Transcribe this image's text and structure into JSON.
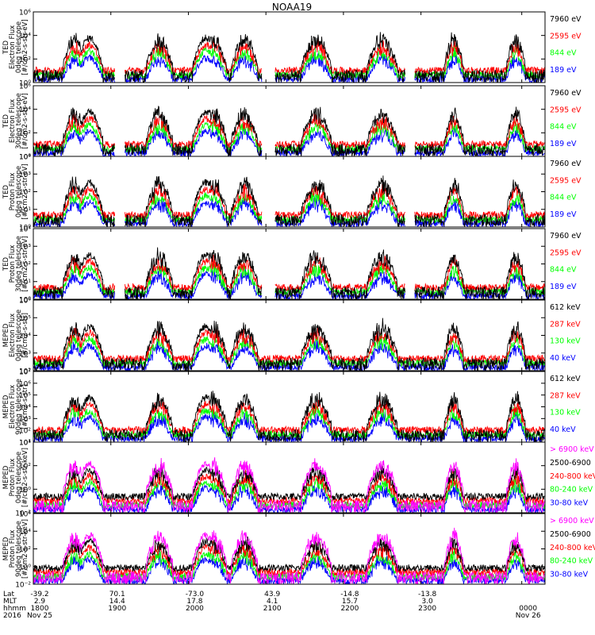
{
  "figure": {
    "title": "NOAA19",
    "colors": {
      "blue": "#0000ff",
      "red": "#ff0000",
      "green": "#00ff00",
      "black": "#000000",
      "magenta": "#ff00ff"
    }
  },
  "chart_data": [
    {
      "type": "line",
      "ylabel": [
        "TED",
        "Electron Flux",
        "0deg telescope",
        "[#/cm2-s-str-eV]"
      ],
      "yscale": "log",
      "ylim_exp": [
        0,
        6
      ],
      "ytick_labels": [
        "10⁰",
        "10²",
        "10⁴",
        "10⁶"
      ],
      "series": [
        {
          "name": "7960 eV",
          "color": "#000000"
        },
        {
          "name": "2595 eV",
          "color": "#ff0000"
        },
        {
          "name": "844 eV",
          "color": "#00ff00"
        },
        {
          "name": "189 eV",
          "color": "#0000ff"
        }
      ]
    },
    {
      "type": "line",
      "ylabel": [
        "TED",
        "Electron Flux",
        "30deg telescope",
        "[#/cm2-s-str-eV]"
      ],
      "yscale": "log",
      "ylim_exp": [
        0,
        6
      ],
      "ytick_labels": [
        "10⁰",
        "10²",
        "10⁴",
        "10⁶"
      ],
      "series": [
        {
          "name": "7960 eV",
          "color": "#000000"
        },
        {
          "name": "2595 eV",
          "color": "#ff0000"
        },
        {
          "name": "844 eV",
          "color": "#00ff00"
        },
        {
          "name": "189 eV",
          "color": "#0000ff"
        }
      ]
    },
    {
      "type": "line",
      "ylabel": [
        "TED",
        "Proton Flux",
        "0deg telescope",
        "[#/cm2-s-str-eV]"
      ],
      "yscale": "log",
      "ylim_exp": [
        0,
        4
      ],
      "ytick_labels": [
        "10⁰",
        "10¹",
        "10²",
        "10³",
        "10⁴"
      ],
      "series": [
        {
          "name": "7960 eV",
          "color": "#000000"
        },
        {
          "name": "2595 eV",
          "color": "#ff0000"
        },
        {
          "name": "844 eV",
          "color": "#00ff00"
        },
        {
          "name": "189 eV",
          "color": "#0000ff"
        }
      ]
    },
    {
      "type": "line",
      "ylabel": [
        "TED",
        "Proton Flux",
        "30deg telescope",
        "[#/cm2-s-str-eV]"
      ],
      "yscale": "log",
      "ylim_exp": [
        0,
        4
      ],
      "ytick_labels": [
        "10⁰",
        "10¹",
        "10²",
        "10³",
        "10⁴"
      ],
      "series": [
        {
          "name": "7960 eV",
          "color": "#000000"
        },
        {
          "name": "2595 eV",
          "color": "#ff0000"
        },
        {
          "name": "844 eV",
          "color": "#00ff00"
        },
        {
          "name": "189 eV",
          "color": "#0000ff"
        }
      ]
    },
    {
      "type": "line",
      "ylabel": [
        "MEPED",
        "Electron Flux",
        "0deg telescope",
        "[#/cm2-s-str]"
      ],
      "yscale": "log",
      "ylim_exp": [
        2,
        6
      ],
      "ytick_labels": [
        "10²",
        "10³",
        "10⁴",
        "10⁵",
        "10⁶"
      ],
      "series": [
        {
          "name": "612 keV",
          "color": "#000000"
        },
        {
          "name": "287 keV",
          "color": "#ff0000"
        },
        {
          "name": "130 keV",
          "color": "#00ff00"
        },
        {
          "name": "40 keV",
          "color": "#0000ff"
        }
      ]
    },
    {
      "type": "line",
      "ylabel": [
        "MEPED",
        "Electron Flux",
        "90deg telescope",
        "[#/cm2-s-str]"
      ],
      "yscale": "log",
      "ylim_exp": [
        1,
        7
      ],
      "ytick_labels": [
        "10¹",
        "10²",
        "10³",
        "10⁴",
        "10⁵",
        "10⁶",
        "10⁷"
      ],
      "series": [
        {
          "name": "612 keV",
          "color": "#000000"
        },
        {
          "name": "287 keV",
          "color": "#ff0000"
        },
        {
          "name": "130 keV",
          "color": "#00ff00"
        },
        {
          "name": "40 keV",
          "color": "#0000ff"
        }
      ]
    },
    {
      "type": "line",
      "ylabel": [
        "MEPED",
        "Proton Flux",
        "0deg telescope",
        "[#/cm2-s-str-keV]"
      ],
      "yscale": "log",
      "ylim_exp": [
        -2,
        5
      ],
      "ytick_labels": [
        "10⁻²",
        "10⁰",
        "10²",
        "10⁴"
      ],
      "series": [
        {
          "name": "> 6900 keV",
          "color": "#ff00ff"
        },
        {
          "name": "2500-6900",
          "color": "#000000"
        },
        {
          "name": "240-800 keV",
          "color": "#ff0000"
        },
        {
          "name": "80-240 keV",
          "color": "#00ff00"
        },
        {
          "name": "30-80 keV",
          "color": "#0000ff"
        }
      ]
    },
    {
      "type": "line",
      "ylabel": [
        "MEPED",
        "Proton Flux",
        "90deg telescope",
        "[#/cm2-s-str-keV]"
      ],
      "yscale": "log",
      "ylim_exp": [
        -2,
        6
      ],
      "ytick_labels": [
        "10⁻²",
        "10⁰",
        "10²",
        "10⁴",
        "10⁶"
      ],
      "series": [
        {
          "name": "> 6900 keV",
          "color": "#ff00ff"
        },
        {
          "name": "2500-6900",
          "color": "#000000"
        },
        {
          "name": "240-800 keV",
          "color": "#ff0000"
        },
        {
          "name": "80-240 keV",
          "color": "#00ff00"
        },
        {
          "name": "30-80 keV",
          "color": "#0000ff"
        }
      ]
    }
  ],
  "x_axis": {
    "row_labels": [
      "Lat",
      "MLT",
      "hhmm",
      "2016"
    ],
    "time_range_min": [
      0,
      660
    ],
    "ticks": [
      {
        "t": 0,
        "lat": "-39.2",
        "mlt": "2.9",
        "hhmm": "1800",
        "date": "Nov 25"
      },
      {
        "t": 100,
        "lat": "70.1",
        "mlt": "14.4",
        "hhmm": "1900",
        "date": ""
      },
      {
        "t": 200,
        "lat": "-73.0",
        "mlt": "17.8",
        "hhmm": "2000",
        "date": ""
      },
      {
        "t": 300,
        "lat": "43.9",
        "mlt": "4.1",
        "hhmm": "2100",
        "date": ""
      },
      {
        "t": 400,
        "lat": "-14.8",
        "mlt": "15.7",
        "hhmm": "2200",
        "date": ""
      },
      {
        "t": 500,
        "lat": "-13.8",
        "mlt": "3.0",
        "hhmm": "2300",
        "date": ""
      },
      {
        "t": 630,
        "lat": "",
        "mlt": "",
        "hhmm": "0000",
        "date": "Nov 26"
      }
    ]
  }
}
